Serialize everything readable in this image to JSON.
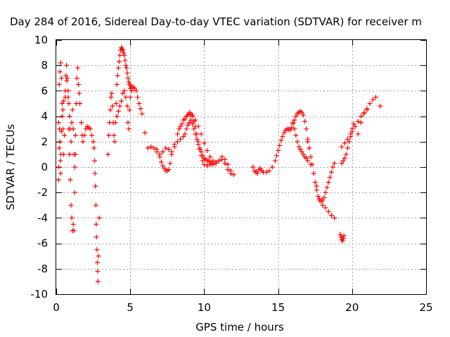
{
  "chart_data": {
    "type": "scatter",
    "title": "Day 284 of 2016, Sidereal Day-to-day VTEC variation (SDTVAR) for receiver m",
    "xlabel": "GPS time / hours",
    "ylabel": "SDTVAR / TECUs",
    "xlim": [
      0,
      25
    ],
    "ylim": [
      -10,
      10
    ],
    "xticks": [
      "0",
      "5",
      "10",
      "15",
      "20",
      "25"
    ],
    "yticks": [
      "-10",
      "-8",
      "-6",
      "-4",
      "-2",
      "0",
      "2",
      "4",
      "6",
      "8",
      "10"
    ],
    "grid": true,
    "marker": "+",
    "color": "#ff0000",
    "series": [
      {
        "x": [
          0.15,
          0.2,
          0.25,
          0.3,
          0.35,
          0.4,
          0.45,
          0.5,
          0.55,
          0.6,
          0.65,
          0.7,
          0.75,
          0.8,
          0.85,
          0.9,
          0.95,
          1.0,
          1.05,
          1.1,
          1.15,
          1.2,
          1.25,
          1.3
        ],
        "y": [
          3.5,
          6.5,
          7.5,
          8.2,
          7.0,
          5.0,
          3.0,
          1.0,
          2.5,
          5.5,
          7.2,
          8.0,
          7.0,
          5.5,
          3.0,
          1.0,
          -1.0,
          -3.0,
          -4.0,
          -5.0,
          -4.5,
          -5.0,
          -2.0,
          1.0
        ]
      },
      {
        "x": [
          0.15,
          0.18,
          0.2,
          0.22,
          0.25,
          0.28,
          0.3,
          0.32,
          0.35,
          0.4,
          0.45,
          0.5,
          0.6,
          0.7,
          0.8,
          0.85,
          0.9,
          0.95,
          1.0,
          1.05,
          1.1,
          1.15,
          1.2,
          1.25,
          1.3,
          1.35,
          1.4,
          1.45,
          1.5,
          1.55,
          1.6,
          1.7,
          1.75,
          1.8,
          1.9,
          2.0,
          2.1,
          2.2,
          2.3,
          2.4,
          2.5
        ],
        "y": [
          -1.0,
          0.0,
          1.5,
          3.0,
          2.0,
          0.5,
          -0.5,
          1.0,
          2.8,
          4.0,
          4.5,
          5.2,
          6.0,
          6.8,
          6.0,
          5.0,
          4.0,
          3.0,
          2.0,
          3.5,
          4.5,
          3.0,
          1.0,
          0.0,
          2.5,
          5.0,
          7.0,
          7.8,
          6.5,
          5.8,
          5.0,
          3.5,
          2.5,
          2.0,
          2.5,
          3.0,
          3.2,
          3.1,
          3.0,
          2.5,
          2.0
        ]
      },
      {
        "x": [
          2.55,
          2.6,
          2.62,
          2.65,
          2.68,
          2.7,
          2.72,
          2.75,
          2.78,
          2.8,
          2.82,
          2.85,
          2.9
        ],
        "y": [
          1.5,
          0.5,
          -0.5,
          -1.5,
          -3.0,
          -4.5,
          -5.5,
          -6.5,
          -7.5,
          -8.2,
          -9.0,
          -7.0,
          -4.0
        ]
      },
      {
        "x": [
          3.5,
          3.55,
          3.6,
          3.65,
          3.7,
          3.75,
          3.8,
          3.85,
          3.9,
          3.95,
          4.0,
          4.05,
          4.1,
          4.15,
          4.2,
          4.25,
          4.3,
          4.35,
          4.4,
          4.45,
          4.5,
          4.55,
          4.6,
          4.65,
          4.7,
          4.75,
          4.8,
          4.85,
          4.9,
          4.95,
          5.0,
          5.05,
          5.1
        ],
        "y": [
          1.0,
          2.5,
          3.5,
          4.5,
          5.5,
          5.8,
          4.8,
          3.5,
          2.5,
          2.0,
          3.5,
          5.0,
          6.5,
          7.2,
          7.8,
          8.3,
          8.8,
          9.2,
          9.4,
          9.3,
          9.2,
          9.0,
          8.8,
          8.4,
          8.0,
          7.8,
          7.4,
          7.0,
          6.7,
          6.5,
          6.2,
          6.4,
          6.0
        ]
      },
      {
        "x": [
          4.1,
          4.2,
          4.3,
          4.4,
          4.5,
          4.6,
          4.7,
          4.8,
          4.85,
          4.9,
          4.95,
          5.0,
          5.1,
          5.2,
          5.3,
          5.4,
          5.5,
          5.6,
          5.7,
          5.8
        ],
        "y": [
          4.0,
          4.4,
          4.8,
          5.2,
          5.8,
          6.0,
          5.5,
          4.8,
          3.5,
          3.0,
          4.5,
          5.5,
          6.2,
          6.3,
          6.2,
          6.0,
          5.5,
          5.0,
          4.6,
          4.2
        ]
      },
      {
        "x": [
          6.0
        ],
        "y": [
          2.7
        ]
      },
      {
        "x": [
          6.2,
          6.4,
          6.6,
          6.8,
          7.0,
          7.1,
          7.2,
          7.3,
          7.4,
          7.5,
          7.6,
          7.7,
          7.8,
          8.0,
          8.2,
          8.4,
          8.6,
          8.8,
          9.0,
          9.1,
          9.2,
          9.3,
          9.4,
          9.5,
          9.6,
          9.7,
          9.8,
          9.9,
          10.0,
          10.2,
          10.4,
          10.6,
          10.8,
          11.0,
          11.2,
          11.4,
          11.6,
          11.8,
          12.0
        ],
        "y": [
          1.5,
          1.6,
          1.5,
          1.2,
          0.8,
          0.4,
          0.1,
          -0.1,
          -0.3,
          -0.3,
          -0.2,
          0.3,
          1.0,
          1.8,
          2.6,
          3.2,
          3.7,
          4.0,
          4.2,
          4.2,
          4.0,
          3.6,
          3.2,
          2.6,
          2.0,
          1.4,
          0.9,
          0.5,
          0.2,
          0.1,
          0.2,
          0.3,
          0.3,
          0.5,
          0.6,
          0.3,
          -0.2,
          -0.5,
          -0.6
        ]
      },
      {
        "x": [
          6.8,
          7.0,
          7.2,
          7.4,
          7.6,
          7.8,
          8.0,
          8.2,
          8.4,
          8.6,
          8.7,
          8.8,
          8.9,
          9.0,
          9.1,
          9.2,
          9.3,
          9.4,
          9.5,
          9.6,
          9.7,
          9.8,
          9.9,
          10.0,
          10.1,
          10.2,
          10.3,
          10.4,
          10.5,
          10.6
        ],
        "y": [
          1.4,
          1.0,
          1.2,
          1.5,
          1.4,
          1.2,
          1.6,
          2.0,
          2.2,
          2.4,
          2.6,
          3.0,
          3.3,
          3.5,
          3.7,
          3.4,
          3.0,
          2.6,
          2.2,
          1.8,
          1.5,
          1.2,
          0.9,
          0.7,
          0.6,
          0.5,
          0.5,
          0.4,
          0.3,
          0.2
        ]
      },
      {
        "x": [
          8.3,
          8.5,
          8.7,
          8.9,
          9.0,
          9.2,
          9.4,
          9.6,
          9.8,
          10.0,
          10.2,
          10.4,
          10.6,
          10.8,
          11.0,
          11.2,
          11.4,
          11.6,
          11.8
        ],
        "y": [
          3.0,
          3.4,
          3.8,
          4.1,
          4.3,
          4.1,
          3.7,
          3.2,
          2.6,
          1.9,
          1.3,
          0.8,
          0.5,
          0.4,
          0.5,
          0.8,
          0.6,
          0.2,
          -0.3
        ]
      },
      {
        "x": [
          13.3,
          13.4,
          13.5,
          13.6,
          13.7,
          13.8,
          13.9,
          14.0,
          14.2,
          14.4,
          14.6,
          14.8,
          14.9,
          15.0,
          15.1,
          15.2,
          15.3,
          15.4,
          15.5,
          15.6,
          15.7,
          15.8,
          15.9,
          16.0,
          16.1,
          16.2,
          16.3,
          16.4,
          16.5,
          16.6,
          16.7,
          16.8,
          16.9,
          17.0
        ],
        "y": [
          0.0,
          -0.3,
          -0.4,
          -0.5,
          -0.2,
          -0.1,
          -0.3,
          -0.4,
          -0.4,
          -0.3,
          0.0,
          0.5,
          0.9,
          1.3,
          1.7,
          2.1,
          2.4,
          2.7,
          2.9,
          3.0,
          3.0,
          2.9,
          3.1,
          3.4,
          3.7,
          4.0,
          4.2,
          4.3,
          4.4,
          4.3,
          4.1,
          3.6,
          3.0,
          2.2
        ]
      },
      {
        "x": [
          16.0,
          16.1,
          16.2,
          16.3,
          16.4,
          16.5,
          16.6,
          16.7,
          16.8,
          16.9,
          17.0,
          17.2,
          17.4,
          17.6,
          17.8,
          18.0,
          18.2,
          18.4,
          18.6,
          18.8
        ],
        "y": [
          3.5,
          3.0,
          2.5,
          2.0,
          1.6,
          1.4,
          1.2,
          1.0,
          0.8,
          0.7,
          0.5,
          0.2,
          -0.5,
          -1.5,
          -2.5,
          -3.0,
          -3.2,
          -3.5,
          -3.8,
          -4.0
        ]
      },
      {
        "x": [
          17.0,
          17.1,
          17.2,
          17.3,
          17.4,
          17.5,
          17.6,
          17.7,
          17.8,
          17.9,
          18.0,
          18.1,
          18.2,
          18.3,
          18.4,
          18.5,
          18.6,
          18.7,
          18.8
        ],
        "y": [
          2.0,
          1.5,
          0.8,
          0.2,
          -0.5,
          -1.2,
          -1.8,
          -2.3,
          -2.6,
          -2.7,
          -2.6,
          -2.4,
          -2.0,
          -1.6,
          -1.2,
          -0.8,
          -0.4,
          0.0,
          0.3
        ]
      },
      {
        "x": [
          19.2,
          19.25,
          19.3,
          19.35,
          19.4,
          19.45
        ],
        "y": [
          -5.3,
          -5.5,
          -5.7,
          -5.8,
          -5.6,
          -5.4
        ]
      },
      {
        "x": [
          19.3,
          19.4,
          19.5,
          19.6,
          19.7,
          19.8,
          19.9,
          20.0,
          20.2,
          20.4,
          20.6,
          20.8,
          21.0,
          21.2,
          21.4,
          21.6,
          21.9
        ],
        "y": [
          0.3,
          0.5,
          0.7,
          1.0,
          1.5,
          2.0,
          2.4,
          2.8,
          3.2,
          3.6,
          4.0,
          4.3,
          4.6,
          5.0,
          5.3,
          5.5,
          4.8
        ]
      },
      {
        "x": [
          19.3,
          19.5,
          19.7,
          19.9,
          20.0,
          20.1,
          20.2,
          20.4,
          20.6,
          20.8,
          21.0
        ],
        "y": [
          1.6,
          1.9,
          2.2,
          2.6,
          3.0,
          3.4,
          3.2,
          2.6,
          3.5,
          4.2,
          4.5
        ]
      }
    ]
  }
}
